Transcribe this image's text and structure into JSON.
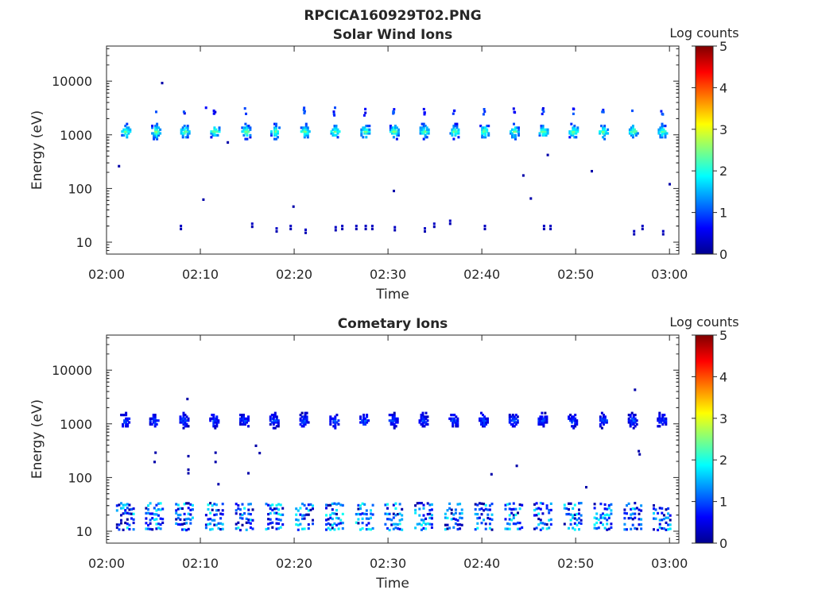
{
  "figure": {
    "title": "RPCICA160929T02.PNG"
  },
  "colorbar": {
    "label": "Log counts",
    "ticks": [
      "0",
      "1",
      "2",
      "3",
      "4",
      "5"
    ],
    "stops": [
      "#00008f",
      "#0000ff",
      "#0080ff",
      "#00ffff",
      "#80ff80",
      "#ffff00",
      "#ff8000",
      "#ff0000",
      "#800000"
    ]
  },
  "chart_data": [
    {
      "type": "heatmap",
      "title": "Solar Wind Ions",
      "xlabel": "Time",
      "ylabel": "Energy (eV)",
      "x_ticks": [
        "02:00",
        "02:10",
        "02:20",
        "02:30",
        "02:40",
        "02:50",
        "03:00"
      ],
      "y_ticks": [
        "10",
        "100",
        "1000",
        "10000"
      ],
      "y_scale": "log",
      "ylim": [
        6,
        45000
      ],
      "xlim_minutes": [
        0,
        61
      ],
      "colorbar_range": [
        0,
        5
      ],
      "main_band": {
        "energy_center_eV": 1150,
        "peak_log_counts": 2.5,
        "burst_minutes": [
          2.0,
          5.2,
          8.3,
          11.5,
          14.8,
          17.9,
          21.1,
          24.3,
          27.5,
          30.6,
          33.8,
          37.0,
          40.2,
          43.4,
          46.5,
          49.7,
          52.9,
          56.1,
          59.2
        ]
      },
      "upper_band": {
        "energy_center_eV": 2700,
        "peak_log_counts": 1.0,
        "burst_minutes": [
          5.2,
          8.3,
          10.5,
          11.5,
          14.8,
          21.1,
          24.3,
          27.5,
          30.6,
          33.8,
          37.0,
          40.2,
          43.4,
          46.5,
          49.7,
          52.9,
          56.1,
          59.2
        ]
      },
      "low_energy_events": [
        [
          7.8,
          20
        ],
        [
          15.4,
          22
        ],
        [
          18.0,
          18
        ],
        [
          19.5,
          20
        ],
        [
          21.1,
          17
        ],
        [
          24.3,
          19
        ],
        [
          25.0,
          20
        ],
        [
          26.5,
          20
        ],
        [
          27.5,
          20
        ],
        [
          28.2,
          20
        ],
        [
          30.6,
          19
        ],
        [
          33.8,
          18
        ],
        [
          34.8,
          22
        ],
        [
          36.5,
          25
        ],
        [
          40.2,
          20
        ],
        [
          46.5,
          20
        ],
        [
          47.2,
          20
        ],
        [
          56.1,
          16
        ],
        [
          57.0,
          20
        ],
        [
          59.2,
          16
        ]
      ],
      "isolated_counts": [
        [
          1.2,
          260
        ],
        [
          5.8,
          9200
        ],
        [
          10.2,
          62
        ],
        [
          12.8,
          720
        ],
        [
          19.8,
          46
        ],
        [
          30.5,
          90
        ],
        [
          44.3,
          175
        ],
        [
          45.1,
          65
        ],
        [
          46.9,
          420
        ],
        [
          51.6,
          210
        ],
        [
          59.9,
          120
        ]
      ]
    },
    {
      "type": "heatmap",
      "title": "Cometary Ions",
      "xlabel": "Time",
      "ylabel": "Energy (eV)",
      "x_ticks": [
        "02:00",
        "02:10",
        "02:20",
        "02:30",
        "02:40",
        "02:50",
        "03:00"
      ],
      "y_ticks": [
        "10",
        "100",
        "1000",
        "10000"
      ],
      "y_scale": "log",
      "ylim": [
        6,
        45000
      ],
      "xlim_minutes": [
        0,
        61
      ],
      "colorbar_range": [
        0,
        5
      ],
      "main_band": {
        "energy_center_eV": 1150,
        "peak_log_counts": 1.0,
        "burst_minutes": [
          1.9,
          5.0,
          8.2,
          11.4,
          14.6,
          17.8,
          21.0,
          24.2,
          27.4,
          30.5,
          33.7,
          36.9,
          40.1,
          43.3,
          46.4,
          49.6,
          52.8,
          56.0,
          59.1
        ]
      },
      "low_band": {
        "energy_range_eV": [
          10,
          35
        ],
        "peak_log_counts": 2.0,
        "burst_minutes": [
          1.9,
          5.0,
          8.2,
          11.4,
          14.6,
          17.8,
          21.0,
          24.2,
          27.4,
          30.5,
          33.7,
          36.9,
          40.1,
          43.3,
          46.4,
          49.6,
          52.8,
          56.0,
          59.1
        ]
      },
      "isolated_counts": [
        [
          5.1,
          290
        ],
        [
          5.0,
          195
        ],
        [
          8.5,
          2900
        ],
        [
          8.6,
          140
        ],
        [
          8.6,
          120
        ],
        [
          8.6,
          250
        ],
        [
          11.5,
          290
        ],
        [
          11.5,
          195
        ],
        [
          11.8,
          75
        ],
        [
          15.0,
          120
        ],
        [
          15.8,
          390
        ],
        [
          16.2,
          285
        ],
        [
          40.9,
          115
        ],
        [
          43.6,
          165
        ],
        [
          51.0,
          66
        ],
        [
          56.2,
          4300
        ],
        [
          56.6,
          310
        ],
        [
          56.7,
          270
        ]
      ]
    }
  ]
}
